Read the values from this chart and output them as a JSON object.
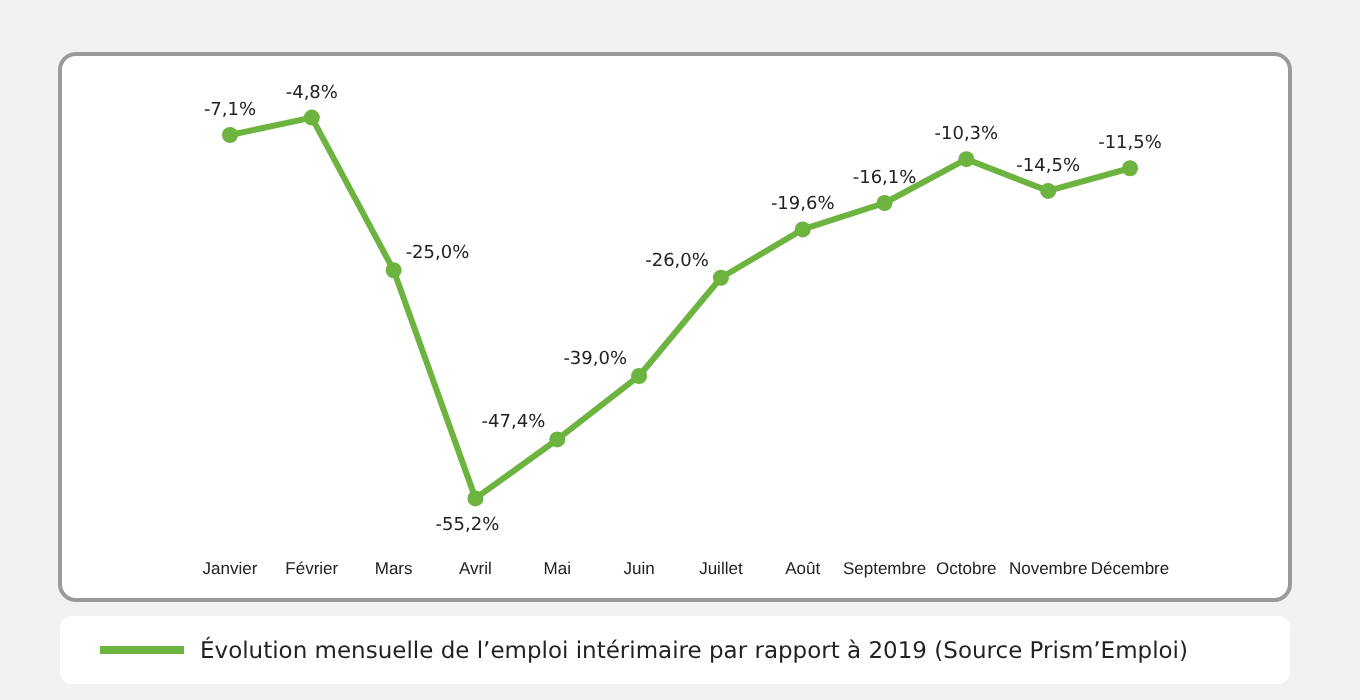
{
  "chart_data": {
    "type": "line",
    "categories": [
      "Janvier",
      "Février",
      "Mars",
      "Avril",
      "Mai",
      "Juin",
      "Juillet",
      "Août",
      "Septembre",
      "Octobre",
      "Novembre",
      "Décembre"
    ],
    "series": [
      {
        "name": "Évolution mensuelle de l’emploi intérimaire par rapport à 2019 (Source Prism’Emploi)",
        "color": "#6cb33f",
        "values": [
          -7.1,
          -4.8,
          -25.0,
          -55.2,
          -47.4,
          -39.0,
          -26.0,
          -19.6,
          -16.1,
          -10.3,
          -14.5,
          -11.5
        ],
        "value_labels": [
          "-7,1%",
          "-4,8%",
          "-25,0%",
          "-55,2%",
          "-47,4%",
          "-39,0%",
          "-26,0%",
          "-19,6%",
          "-16,1%",
          "-10,3%",
          "-14,5%",
          "-11,5%"
        ]
      }
    ],
    "legend": "bottom",
    "marker": "circle",
    "line_style": "solid",
    "grid": false
  }
}
